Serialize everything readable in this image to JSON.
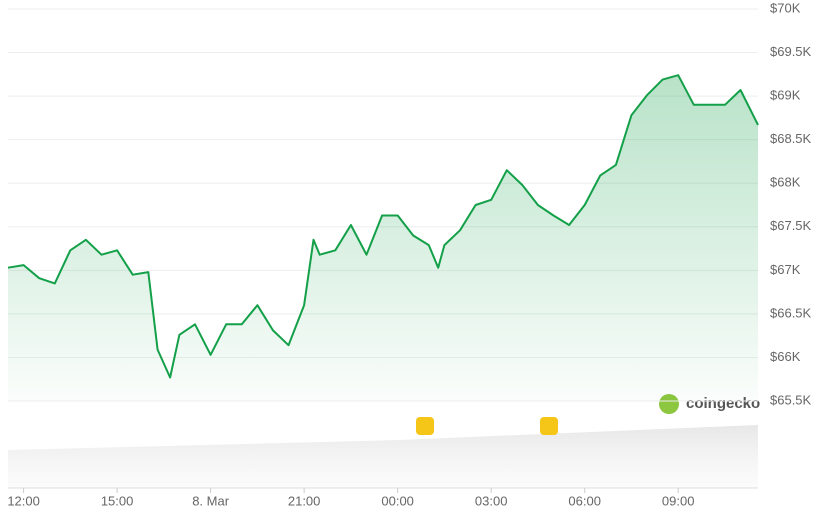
{
  "chart_data": {
    "type": "line",
    "color": "#13a049",
    "grid": true,
    "watermark": "coingecko",
    "x": [
      -0.5,
      0,
      0.5,
      1,
      1.5,
      2,
      2.5,
      3,
      3.5,
      4,
      4.3,
      4.7,
      5,
      5.5,
      6,
      6.5,
      7,
      7.5,
      8,
      8.5,
      9,
      9.3,
      9.5,
      10,
      10.5,
      11,
      11.5,
      12,
      12.5,
      13,
      13.3,
      13.5,
      14,
      14.5,
      15,
      15.5,
      16,
      16.5,
      17,
      17.5,
      18,
      18.5,
      19,
      19.5,
      20,
      20.5,
      21,
      21.5,
      22,
      22.5,
      23,
      23.56
    ],
    "values": [
      67030,
      67060,
      66910,
      66850,
      67230,
      67350,
      67180,
      67230,
      66950,
      66980,
      66090,
      65770,
      66260,
      66380,
      66030,
      66380,
      66380,
      66600,
      66310,
      66140,
      66600,
      67350,
      67180,
      67230,
      67520,
      67180,
      67630,
      67630,
      67400,
      67290,
      67030,
      67290,
      67460,
      67750,
      67810,
      68150,
      67980,
      67750,
      67630,
      67520,
      67750,
      68090,
      68210,
      68780,
      69010,
      69190,
      69240,
      68900,
      68900,
      68900,
      69070,
      68670
    ],
    "xlim": [
      -0.5,
      23.56
    ],
    "xticks": [
      {
        "value": 0,
        "label": "12:00"
      },
      {
        "value": 3,
        "label": "15:00"
      },
      {
        "value": 6,
        "label": "8. Mar"
      },
      {
        "value": 9,
        "label": "21:00"
      },
      {
        "value": 12,
        "label": "00:00"
      },
      {
        "value": 15,
        "label": "03:00"
      },
      {
        "value": 18,
        "label": "06:00"
      },
      {
        "value": 21,
        "label": "09:00"
      }
    ],
    "ylim": [
      65500,
      70000
    ],
    "yticks": [
      {
        "value": 65500,
        "label": "$65.5K"
      },
      {
        "value": 66000,
        "label": "$66K"
      },
      {
        "value": 66500,
        "label": "$66.5K"
      },
      {
        "value": 67000,
        "label": "$67K"
      },
      {
        "value": 67500,
        "label": "$67.5K"
      },
      {
        "value": 68000,
        "label": "$68K"
      },
      {
        "value": 68500,
        "label": "$68.5K"
      },
      {
        "value": 69000,
        "label": "$69K"
      },
      {
        "value": 69500,
        "label": "$69.5K"
      },
      {
        "value": 70000,
        "label": "$70K"
      }
    ]
  }
}
